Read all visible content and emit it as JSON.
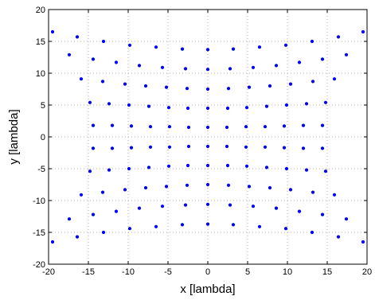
{
  "chart_data": {
    "type": "scatter",
    "title": "",
    "xlabel": "x [lambda]",
    "ylabel": "y [lambda]",
    "xlim": [
      -20,
      20
    ],
    "ylim": [
      -20,
      20
    ],
    "xticks": [
      -20,
      -15,
      -10,
      -5,
      0,
      5,
      10,
      15,
      20
    ],
    "yticks": [
      -20,
      -15,
      -10,
      -5,
      0,
      5,
      10,
      15,
      20
    ],
    "grid": true,
    "marker_color": "#0000ff",
    "series": [
      {
        "points": [
          [
            -19.5,
            16.5
          ],
          [
            -16.4,
            15.7
          ],
          [
            -13.1,
            15.0
          ],
          [
            -9.8,
            14.4
          ],
          [
            -6.5,
            14.1
          ],
          [
            -3.2,
            13.8
          ],
          [
            0.0,
            13.7
          ],
          [
            3.2,
            13.8
          ],
          [
            6.5,
            14.1
          ],
          [
            9.8,
            14.4
          ],
          [
            13.1,
            15.0
          ],
          [
            16.4,
            15.7
          ],
          [
            19.5,
            16.5
          ],
          [
            -17.4,
            12.9
          ],
          [
            -14.4,
            12.2
          ],
          [
            -11.5,
            11.7
          ],
          [
            -8.6,
            11.2
          ],
          [
            -5.7,
            10.9
          ],
          [
            -2.8,
            10.7
          ],
          [
            0.0,
            10.6
          ],
          [
            2.8,
            10.7
          ],
          [
            5.7,
            10.9
          ],
          [
            8.6,
            11.2
          ],
          [
            11.5,
            11.7
          ],
          [
            14.4,
            12.2
          ],
          [
            17.4,
            12.9
          ],
          [
            -15.9,
            9.1
          ],
          [
            -13.2,
            8.7
          ],
          [
            -10.4,
            8.3
          ],
          [
            -7.8,
            8.0
          ],
          [
            -5.2,
            7.8
          ],
          [
            -2.6,
            7.6
          ],
          [
            0.0,
            7.5
          ],
          [
            2.6,
            7.6
          ],
          [
            5.2,
            7.8
          ],
          [
            7.8,
            8.0
          ],
          [
            10.4,
            8.3
          ],
          [
            13.2,
            8.7
          ],
          [
            15.9,
            9.1
          ],
          [
            -14.8,
            5.4
          ],
          [
            -12.4,
            5.2
          ],
          [
            -9.9,
            5.0
          ],
          [
            -7.4,
            4.8
          ],
          [
            -4.9,
            4.6
          ],
          [
            -2.5,
            4.5
          ],
          [
            0.0,
            4.5
          ],
          [
            2.5,
            4.5
          ],
          [
            4.9,
            4.6
          ],
          [
            7.4,
            4.8
          ],
          [
            9.9,
            5.0
          ],
          [
            12.4,
            5.2
          ],
          [
            14.8,
            5.4
          ],
          [
            -14.4,
            1.8
          ],
          [
            -12.0,
            1.8
          ],
          [
            -9.6,
            1.7
          ],
          [
            -7.2,
            1.6
          ],
          [
            -4.8,
            1.6
          ],
          [
            -2.4,
            1.5
          ],
          [
            0.0,
            1.5
          ],
          [
            2.4,
            1.5
          ],
          [
            4.8,
            1.6
          ],
          [
            7.2,
            1.6
          ],
          [
            9.6,
            1.7
          ],
          [
            12.0,
            1.8
          ],
          [
            14.4,
            1.8
          ],
          [
            -14.4,
            -1.8
          ],
          [
            -12.0,
            -1.8
          ],
          [
            -9.6,
            -1.7
          ],
          [
            -7.2,
            -1.6
          ],
          [
            -4.8,
            -1.6
          ],
          [
            -2.4,
            -1.5
          ],
          [
            0.0,
            -1.5
          ],
          [
            2.4,
            -1.5
          ],
          [
            4.8,
            -1.6
          ],
          [
            7.2,
            -1.6
          ],
          [
            9.6,
            -1.7
          ],
          [
            12.0,
            -1.8
          ],
          [
            14.4,
            -1.8
          ],
          [
            -14.8,
            -5.4
          ],
          [
            -12.4,
            -5.2
          ],
          [
            -9.9,
            -5.0
          ],
          [
            -7.4,
            -4.8
          ],
          [
            -4.9,
            -4.6
          ],
          [
            -2.5,
            -4.5
          ],
          [
            0.0,
            -4.5
          ],
          [
            2.5,
            -4.5
          ],
          [
            4.9,
            -4.6
          ],
          [
            7.4,
            -4.8
          ],
          [
            9.9,
            -5.0
          ],
          [
            12.4,
            -5.2
          ],
          [
            14.8,
            -5.4
          ],
          [
            -15.9,
            -9.1
          ],
          [
            -13.2,
            -8.7
          ],
          [
            -10.4,
            -8.3
          ],
          [
            -7.8,
            -8.0
          ],
          [
            -5.2,
            -7.8
          ],
          [
            -2.6,
            -7.6
          ],
          [
            0.0,
            -7.5
          ],
          [
            2.6,
            -7.6
          ],
          [
            5.2,
            -7.8
          ],
          [
            7.8,
            -8.0
          ],
          [
            10.4,
            -8.3
          ],
          [
            13.2,
            -8.7
          ],
          [
            15.9,
            -9.1
          ],
          [
            -17.4,
            -12.9
          ],
          [
            -14.4,
            -12.2
          ],
          [
            -11.5,
            -11.7
          ],
          [
            -8.6,
            -11.2
          ],
          [
            -5.7,
            -10.9
          ],
          [
            -2.8,
            -10.7
          ],
          [
            0.0,
            -10.6
          ],
          [
            2.8,
            -10.7
          ],
          [
            5.7,
            -10.9
          ],
          [
            8.6,
            -11.2
          ],
          [
            11.5,
            -11.7
          ],
          [
            14.4,
            -12.2
          ],
          [
            17.4,
            -12.9
          ],
          [
            -19.5,
            -16.5
          ],
          [
            -16.4,
            -15.7
          ],
          [
            -13.1,
            -15.0
          ],
          [
            -9.8,
            -14.4
          ],
          [
            -6.5,
            -14.1
          ],
          [
            -3.2,
            -13.8
          ],
          [
            0.0,
            -13.7
          ],
          [
            3.2,
            -13.8
          ],
          [
            6.5,
            -14.1
          ],
          [
            9.8,
            -14.4
          ],
          [
            13.1,
            -15.0
          ],
          [
            16.4,
            -15.7
          ],
          [
            19.5,
            -16.5
          ]
        ]
      }
    ]
  }
}
